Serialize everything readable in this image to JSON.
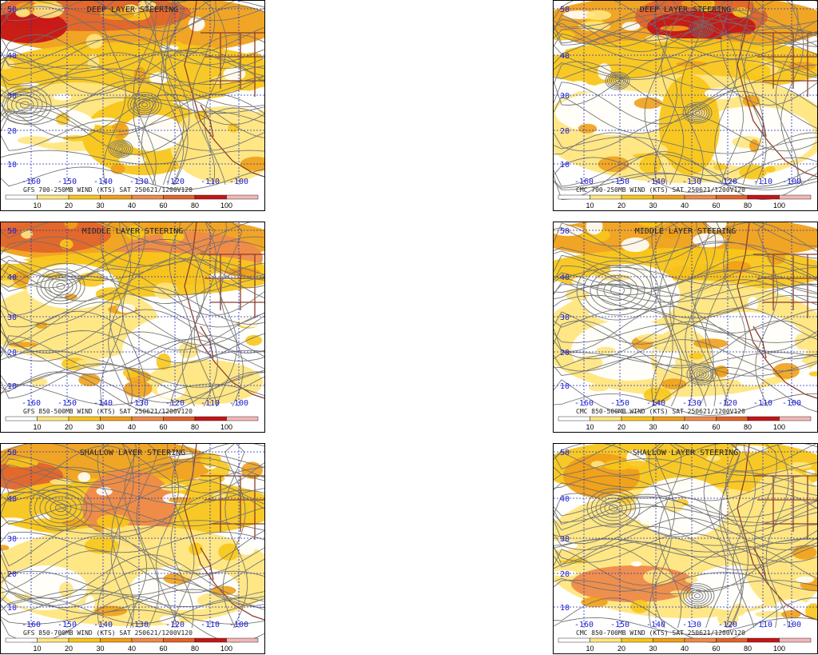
{
  "colors": {
    "c10": "#ffffff",
    "c20": "#ffe680",
    "c30": "#f8c61a",
    "c40": "#f0a018",
    "c50": "#ee8a4a",
    "c60": "#e2642c",
    "c80": "#c61616",
    "c100": "#f4b6b6",
    "coast": "#8c3c2a",
    "stream": "#707070",
    "grid": "#2030c0"
  },
  "colorbar": {
    "labels": [
      "10",
      "20",
      "30",
      "40",
      "60",
      "80",
      "100"
    ]
  },
  "lon_labels": [
    "-160",
    "-150",
    "-140",
    "-130",
    "-120",
    "-110",
    "-100"
  ],
  "lat_labels": [
    "50",
    "40",
    "30",
    "20",
    "10"
  ],
  "panels": [
    {
      "title": "DEEP LAYER STEERING",
      "caption": "GFS 700-250MB WIND (KTS) SAT 250621/1200V120"
    },
    {
      "title": "DEEP LAYER STEERING",
      "caption": "CMC 700-250MB WIND (KTS) SAT 250621/1200V120"
    },
    {
      "title": "MIDDLE LAYER STEERING",
      "caption": "GFS 850-500MB WIND (KTS) SAT 250621/1200V120"
    },
    {
      "title": "MIDDLE LAYER STEERING",
      "caption": "CMC 850-500MB WIND (KTS) SAT 250621/1200V120"
    },
    {
      "title": "SHALLOW LAYER STEERING",
      "caption": "GFS 850-700MB WIND (KTS) SAT 250621/1200V120"
    },
    {
      "title": "SHALLOW LAYER STEERING",
      "caption": "CMC 850-700MB WIND (KTS) SAT 250621/1200V120"
    }
  ]
}
